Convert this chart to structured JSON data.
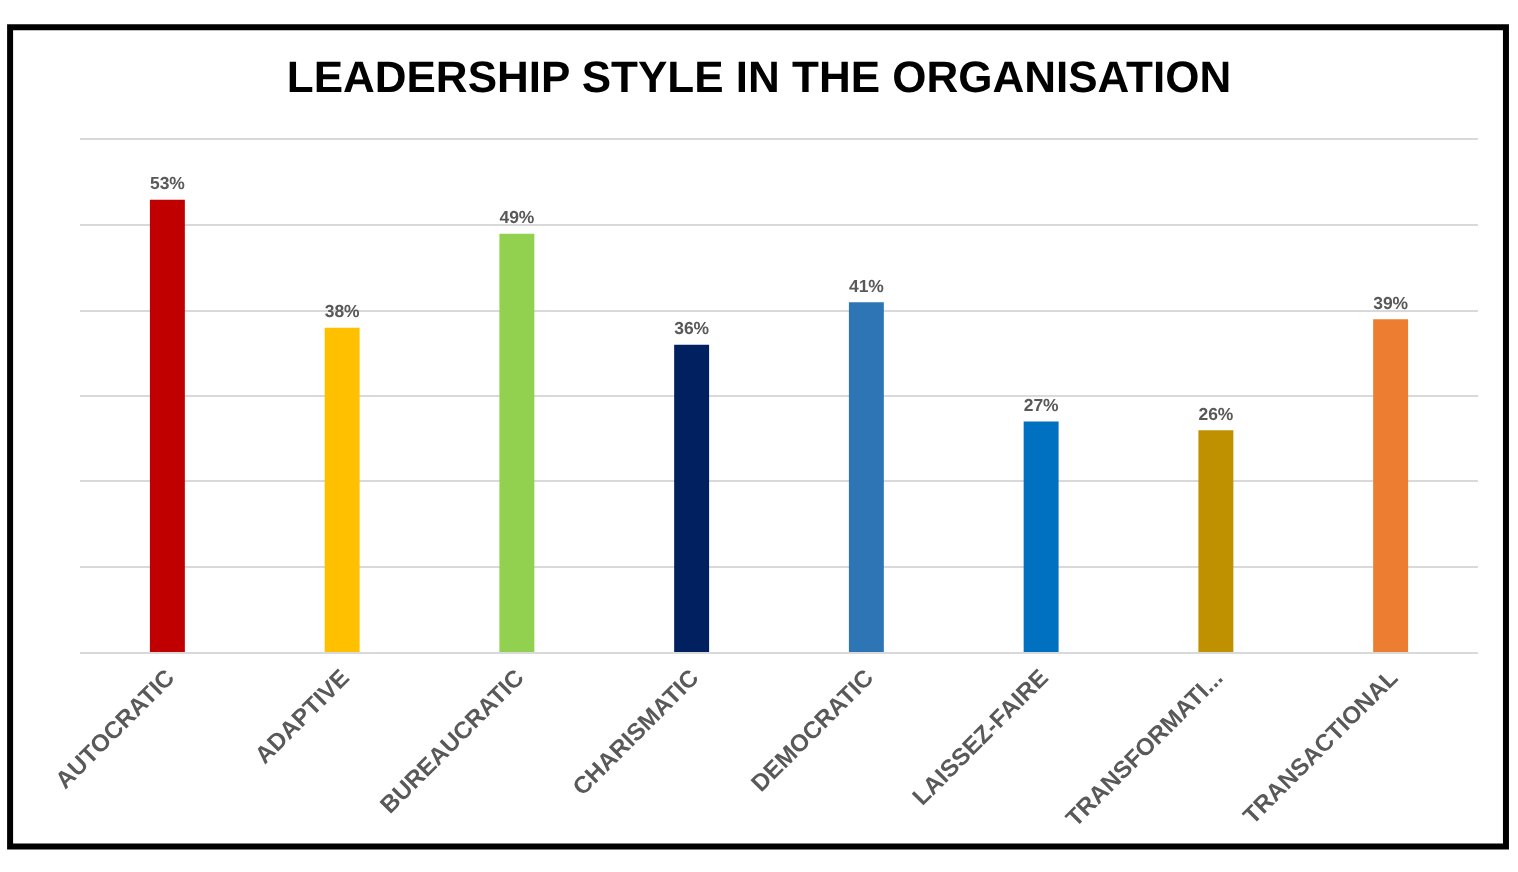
{
  "chart_data": {
    "type": "bar",
    "title": "LEADERSHIP STYLE IN THE ORGANISATION",
    "categories": [
      "AUTOCRATIC",
      "ADAPTIVE",
      "BUREAUCRATIC",
      "CHARISMATIC",
      "DEMOCRATIC",
      "LAISSEZ-FAIRE",
      "TRANSFORMATI...",
      "TRANSACTIONAL"
    ],
    "values": [
      53,
      38,
      49,
      36,
      41,
      27,
      26,
      39
    ],
    "value_labels": [
      "53%",
      "38%",
      "49%",
      "36%",
      "41%",
      "27%",
      "26%",
      "39%"
    ],
    "colors": [
      "#c00000",
      "#ffc000",
      "#92d050",
      "#002060",
      "#2e75b6",
      "#0070c0",
      "#bf9000",
      "#ed7d31"
    ],
    "ylim": [
      0,
      60
    ],
    "yticks": [
      {
        "value": 0,
        "label": null
      },
      {
        "value": 10,
        "label": null
      },
      {
        "value": 20,
        "label": null
      },
      {
        "value": 30,
        "label": null
      },
      {
        "value": 40,
        "label": null
      },
      {
        "value": 50,
        "label": null
      },
      {
        "value": 60,
        "label": null
      }
    ],
    "grid": "y",
    "tick_labels": "x"
  }
}
